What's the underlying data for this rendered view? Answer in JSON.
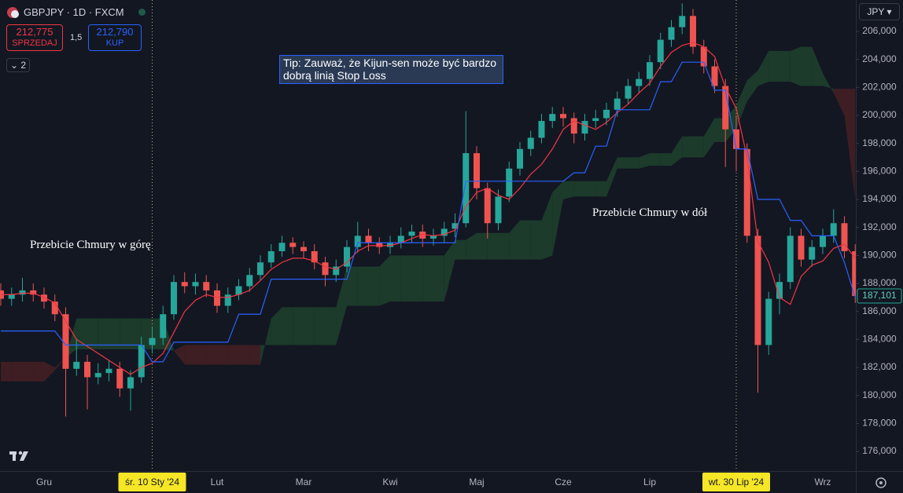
{
  "chart_data": {
    "type": "candlestick",
    "title": "GBPJPY · 1D · FXCM",
    "currency": "JPY",
    "categories": [
      null,
      null,
      null,
      null,
      "Gru",
      null,
      null,
      null,
      null,
      null,
      null,
      null,
      null,
      null,
      null,
      null,
      null,
      null,
      null,
      null,
      "Lut",
      null,
      null,
      null,
      null,
      null,
      null,
      null,
      "Mar",
      null,
      null,
      null,
      null,
      null,
      null,
      null,
      "Kwi",
      null,
      null,
      null,
      null,
      null,
      null,
      null,
      "Maj",
      null,
      null,
      null,
      null,
      null,
      null,
      null,
      "Cze",
      null,
      null,
      null,
      null,
      null,
      null,
      null,
      "Lip",
      null,
      null,
      null,
      null,
      null,
      null,
      null,
      null,
      null,
      null,
      null,
      null,
      null,
      null,
      null,
      "Wrz",
      null,
      null,
      null
    ],
    "open": [
      187.5,
      186.9,
      187.2,
      187.5,
      187.2,
      186.7,
      185.8,
      181.9,
      182.4,
      181.3,
      181.6,
      181.9,
      180.5,
      181.3,
      183.6,
      184.1,
      185.8,
      188.1,
      187.8,
      188.1,
      187.5,
      186.4,
      187.2,
      187.8,
      188.6,
      189.5,
      190.3,
      190.9,
      190.6,
      190.3,
      189.5,
      188.6,
      189.2,
      190.6,
      191.4,
      190.9,
      190.6,
      190.9,
      191.4,
      191.7,
      191.2,
      191.4,
      191.9,
      192.3,
      197.3,
      194.8,
      192.3,
      194.2,
      196.2,
      197.6,
      198.4,
      199.6,
      200.1,
      199.8,
      198.7,
      199.6,
      199.8,
      200.4,
      201.2,
      202.1,
      202.6,
      203.8,
      205.4,
      206.3,
      207.1,
      204.9,
      203.5,
      202.1,
      199.0,
      197.6,
      191.4,
      183.6,
      186.9,
      188.1,
      191.4,
      189.7,
      190.6,
      191.4,
      192.3,
      190.3
    ],
    "high": [
      188.0,
      187.7,
      188.4,
      188.0,
      187.7,
      187.2,
      186.3,
      184.0,
      182.9,
      182.3,
      182.5,
      182.4,
      181.8,
      184.2,
      184.9,
      186.4,
      188.6,
      188.8,
      188.7,
      188.6,
      188.0,
      187.7,
      188.3,
      189.1,
      190.0,
      190.8,
      191.4,
      191.3,
      191.0,
      190.8,
      189.9,
      189.7,
      191.1,
      192.4,
      191.9,
      191.3,
      191.4,
      192.0,
      192.2,
      192.2,
      191.9,
      192.4,
      193.0,
      200.3,
      197.8,
      195.2,
      194.7,
      196.7,
      198.1,
      198.9,
      200.1,
      200.6,
      200.6,
      200.2,
      200.1,
      200.4,
      200.9,
      201.7,
      202.6,
      203.1,
      204.3,
      205.9,
      206.8,
      208.0,
      207.6,
      205.4,
      204.0,
      202.6,
      200.0,
      198.0,
      191.9,
      187.4,
      188.7,
      192.0,
      191.9,
      191.1,
      191.9,
      193.3,
      192.8,
      190.8
    ],
    "low": [
      186.4,
      186.4,
      186.7,
      186.7,
      186.2,
      185.3,
      178.5,
      181.4,
      179.0,
      180.8,
      181.0,
      179.9,
      178.9,
      180.9,
      183.0,
      183.6,
      185.4,
      187.3,
      187.2,
      187.0,
      185.9,
      185.9,
      186.8,
      187.4,
      188.2,
      189.1,
      189.9,
      190.1,
      189.8,
      189.0,
      187.8,
      188.1,
      188.8,
      190.2,
      190.3,
      190.1,
      190.1,
      190.5,
      190.9,
      190.6,
      190.7,
      190.9,
      191.3,
      192.0,
      194.0,
      191.2,
      191.8,
      193.8,
      195.7,
      197.1,
      198.0,
      199.1,
      199.2,
      198.0,
      198.2,
      199.1,
      199.3,
      199.9,
      200.8,
      201.6,
      202.1,
      203.3,
      204.9,
      205.8,
      204.4,
      203.0,
      201.6,
      196.3,
      196.0,
      190.9,
      180.2,
      182.9,
      185.8,
      187.6,
      189.2,
      189.2,
      190.1,
      190.9,
      189.8,
      186.6
    ],
    "close": [
      186.9,
      187.2,
      187.5,
      187.2,
      186.7,
      185.8,
      181.9,
      182.4,
      181.3,
      181.6,
      181.9,
      180.5,
      181.3,
      183.6,
      184.1,
      185.8,
      188.1,
      187.8,
      188.1,
      187.5,
      186.4,
      187.2,
      187.8,
      188.6,
      189.5,
      190.3,
      190.9,
      190.6,
      190.3,
      189.5,
      188.6,
      189.2,
      190.6,
      191.4,
      190.9,
      190.6,
      190.9,
      191.4,
      191.7,
      191.2,
      191.4,
      191.9,
      192.3,
      197.3,
      194.8,
      192.3,
      194.2,
      196.2,
      197.6,
      198.4,
      199.6,
      200.1,
      199.8,
      198.7,
      199.6,
      199.8,
      200.4,
      201.2,
      202.1,
      202.6,
      203.8,
      205.4,
      206.3,
      207.1,
      204.9,
      203.5,
      202.1,
      199.0,
      197.6,
      191.4,
      183.6,
      186.9,
      188.1,
      191.4,
      189.7,
      190.6,
      191.4,
      192.3,
      190.3,
      187.1
    ],
    "up_color": "#26a69a",
    "down_color": "#ef5350",
    "series": [
      {
        "color": "#f23645",
        "values": [
          187.2,
          187.2,
          187.3,
          187.3,
          187.0,
          186.6,
          185.3,
          184.0,
          183.5,
          183.0,
          182.5,
          182.0,
          181.5,
          182.0,
          182.3,
          183.0,
          184.5,
          186.0,
          186.8,
          187.2,
          187.0,
          187.0,
          187.2,
          187.5,
          188.2,
          189.0,
          189.5,
          189.8,
          189.8,
          189.6,
          189.2,
          189.0,
          189.5,
          190.3,
          190.7,
          190.7,
          190.7,
          190.9,
          191.2,
          191.5,
          191.4,
          191.5,
          191.8,
          193.5,
          194.5,
          194.8,
          194.3,
          194.0,
          194.8,
          195.8,
          196.5,
          197.6,
          199.0,
          199.6,
          199.3,
          199.0,
          199.5,
          200.2,
          200.8,
          201.6,
          202.3,
          203.5,
          204.5,
          205.0,
          205.2,
          204.9,
          204.2,
          202.0,
          200.5,
          197.0,
          191.0,
          189.5,
          187.0,
          186.5,
          188.5,
          189.3,
          189.6,
          190.5,
          190.8,
          189.8
        ]
      },
      {
        "color": "#2962ff",
        "values": [
          184.6,
          184.6,
          184.6,
          184.6,
          184.6,
          184.6,
          183.6,
          183.6,
          183.6,
          183.6,
          183.6,
          183.6,
          183.6,
          183.6,
          182.4,
          182.4,
          183.8,
          183.8,
          183.8,
          183.8,
          183.8,
          183.8,
          185.8,
          185.8,
          185.8,
          188.3,
          188.3,
          188.3,
          188.3,
          188.3,
          188.3,
          188.3,
          188.3,
          190.9,
          190.9,
          190.9,
          190.9,
          190.9,
          190.9,
          190.9,
          190.9,
          190.9,
          190.9,
          195.3,
          195.3,
          195.3,
          195.3,
          195.3,
          195.3,
          195.3,
          195.3,
          195.3,
          195.3,
          195.9,
          195.9,
          197.8,
          197.8,
          200.4,
          200.4,
          200.4,
          200.4,
          202.4,
          202.4,
          203.8,
          203.8,
          203.8,
          201.8,
          201.8,
          197.6,
          197.6,
          194.0,
          194.0,
          194.0,
          192.5,
          192.5,
          191.4,
          191.4,
          191.4,
          189.5,
          187.0
        ]
      }
    ],
    "cloud": {
      "up_color": "#1c3b2b",
      "down_color": "#3e1e23",
      "span_a": [
        181.0,
        181.0,
        181.0,
        181.0,
        181.0,
        181.8,
        182.7,
        185.5,
        185.5,
        185.5,
        185.5,
        185.5,
        185.5,
        185.5,
        185.5,
        185.5,
        183.2,
        182.2,
        182.2,
        182.2,
        182.2,
        182.2,
        182.2,
        182.2,
        182.2,
        185.5,
        186.3,
        186.3,
        186.3,
        186.3,
        186.3,
        186.3,
        189.2,
        189.2,
        189.2,
        189.2,
        190.0,
        190.0,
        190.0,
        190.0,
        190.0,
        190.0,
        191.1,
        191.1,
        191.6,
        191.6,
        191.6,
        191.6,
        192.5,
        192.5,
        192.5,
        194.5,
        195.3,
        195.3,
        195.3,
        195.3,
        195.3,
        197.0,
        197.0,
        197.0,
        197.3,
        197.3,
        197.3,
        198.5,
        198.5,
        198.5,
        199.8,
        199.8,
        200.7,
        202.5,
        203.2,
        204.6,
        204.6,
        204.6,
        204.9,
        204.9,
        203.0,
        201.6,
        200.0,
        194.0
      ],
      "span_b": [
        182.4,
        182.4,
        182.4,
        182.4,
        182.4,
        182.0,
        182.7,
        183.3,
        183.3,
        183.3,
        183.3,
        183.3,
        183.3,
        183.3,
        183.3,
        183.3,
        183.2,
        183.6,
        183.6,
        183.6,
        183.6,
        183.6,
        183.6,
        183.6,
        183.6,
        183.6,
        183.6,
        183.6,
        183.6,
        183.6,
        183.6,
        183.6,
        186.4,
        186.4,
        186.4,
        186.4,
        186.7,
        186.7,
        186.7,
        186.7,
        186.7,
        186.7,
        189.7,
        189.7,
        189.7,
        189.7,
        189.7,
        189.7,
        189.7,
        189.7,
        189.7,
        190.0,
        194.0,
        194.2,
        194.2,
        194.2,
        194.2,
        196.2,
        196.2,
        196.2,
        196.4,
        196.4,
        196.4,
        197.0,
        197.0,
        197.0,
        198.1,
        198.1,
        199.0,
        201.0,
        202.1,
        202.4,
        202.4,
        202.4,
        202.1,
        202.1,
        202.1,
        201.9,
        201.9,
        201.9
      ]
    },
    "ylim": [
      174.6,
      208.24
    ],
    "yticks": [
      {
        "value": 176,
        "label": "176,000"
      },
      {
        "value": 178,
        "label": "178,000"
      },
      {
        "value": 180,
        "label": "180,000"
      },
      {
        "value": 182,
        "label": "182,000"
      },
      {
        "value": 184,
        "label": "184,000"
      },
      {
        "value": 186,
        "label": "186,000"
      },
      {
        "value": 188,
        "label": "188,000"
      },
      {
        "value": 190,
        "label": "190,000"
      },
      {
        "value": 192,
        "label": "192,000"
      },
      {
        "value": 194,
        "label": "194,000"
      },
      {
        "value": 196,
        "label": "196,000"
      },
      {
        "value": 198,
        "label": "198,000"
      },
      {
        "value": 200,
        "label": "200,000"
      },
      {
        "value": 202,
        "label": "202,000"
      },
      {
        "value": 204,
        "label": "204,000"
      },
      {
        "value": 206,
        "label": "206,000"
      }
    ],
    "grid": false,
    "last_price": {
      "value": 187.101,
      "label": "187,101"
    },
    "highlight": [
      {
        "index": 14,
        "label": "śr. 10 Sty '24"
      },
      {
        "index": 68,
        "label": "wt. 30 Lip '24"
      }
    ]
  },
  "header": {
    "sell_price": "212,775",
    "sell_label": "SPRZEDAJ",
    "spread": "1,5",
    "buy_price": "212,790",
    "buy_label": "KUP",
    "layers": "2"
  },
  "annotations": {
    "tip": "Tip: Zauważ, że Kijun-sen może być bardzo dobrą linią Stop Loss",
    "break_up": "Przebicie Chmury w górę",
    "break_down": "Przebicie Chmury w dół"
  }
}
